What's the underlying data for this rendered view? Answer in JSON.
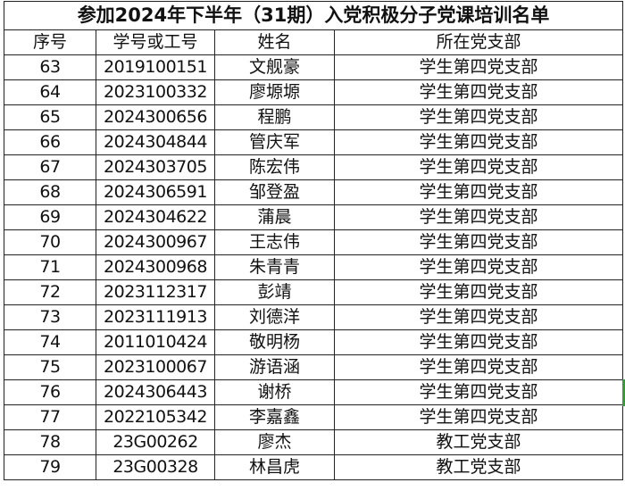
{
  "title": "参加2024年下半年（31期）入党积极分子党课培训名单",
  "headers": [
    "序号",
    "学号或工号",
    "姓名",
    "所在党支部"
  ],
  "rows": [
    [
      "63",
      "2019100151",
      "文舰豪",
      "学生第四党支部"
    ],
    [
      "64",
      "2023100332",
      "廖塬塬",
      "学生第四党支部"
    ],
    [
      "65",
      "2024300656",
      "程鹏",
      "学生第四党支部"
    ],
    [
      "66",
      "2024304844",
      "管庆军",
      "学生第四党支部"
    ],
    [
      "67",
      "2024303705",
      "陈宏伟",
      "学生第四党支部"
    ],
    [
      "68",
      "2024306591",
      "邹登盈",
      "学生第四党支部"
    ],
    [
      "69",
      "2024304622",
      "蒲晨",
      "学生第四党支部"
    ],
    [
      "70",
      "2024300967",
      "王志伟",
      "学生第四党支部"
    ],
    [
      "71",
      "2024300968",
      "朱青青",
      "学生第四党支部"
    ],
    [
      "72",
      "2023112317",
      "彭靖",
      "学生第四党支部"
    ],
    [
      "73",
      "2023111913",
      "刘德洋",
      "学生第四党支部"
    ],
    [
      "74",
      "2011010424",
      "敬明杨",
      "学生第四党支部"
    ],
    [
      "75",
      "2023100067",
      "游语涵",
      "学生第四党支部"
    ],
    [
      "76",
      "2024306443",
      "谢桥",
      "学生第四党支部"
    ],
    [
      "77",
      "2022105342",
      "李嘉鑫",
      "学生第四党支部"
    ],
    [
      "78",
      "23G00262",
      "廖杰",
      "教工党支部"
    ],
    [
      "79",
      "23G00328",
      "林昌虎",
      "教工党支部"
    ]
  ]
}
